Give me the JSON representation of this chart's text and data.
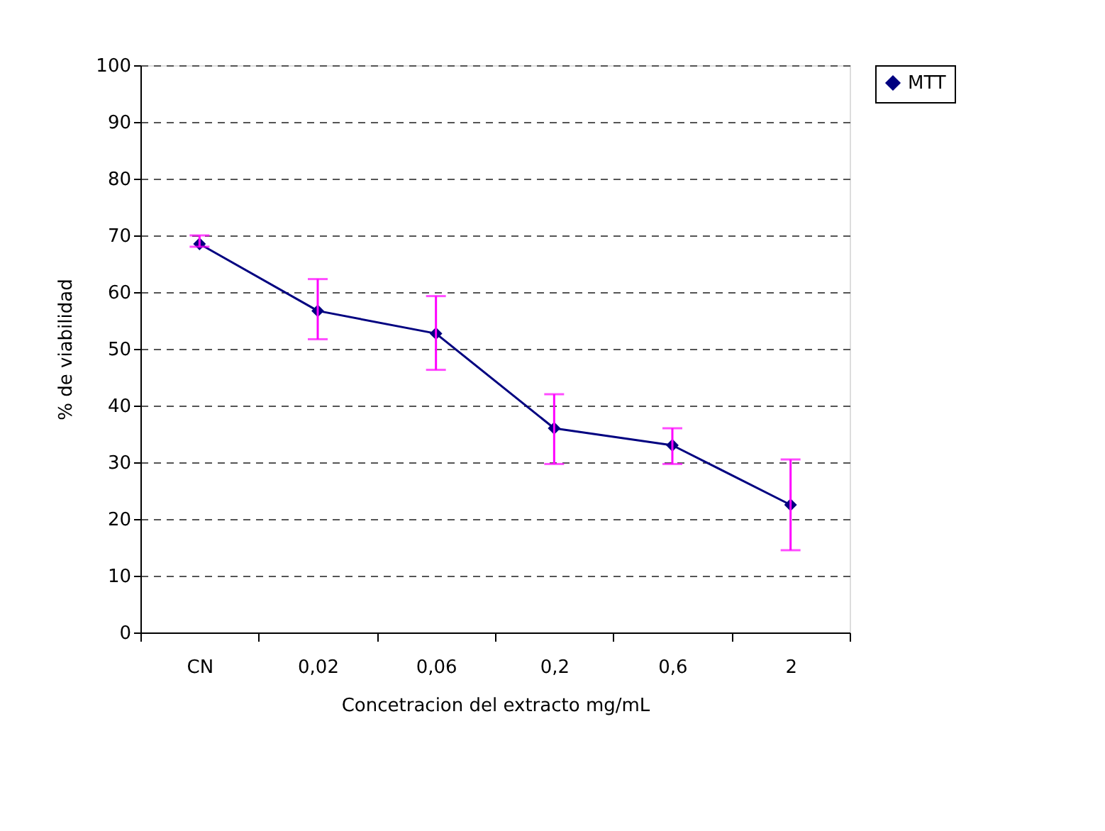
{
  "chart_data": {
    "type": "line",
    "xlabel": "Concetracion del extracto  mg/mL",
    "ylabel": "% de viabilidad",
    "categories": [
      "CN",
      "0,02",
      "0,06",
      "0,2",
      "0,6",
      "2"
    ],
    "series": [
      {
        "name": "MTT",
        "color": "#000080",
        "values": [
          68.5,
          56.7,
          52.7,
          36,
          33,
          22.5
        ],
        "errors": [
          [
            68,
            70
          ],
          [
            51.7,
            62.3
          ],
          [
            46.3,
            59.3
          ],
          [
            29.7,
            42
          ],
          [
            29.7,
            36
          ],
          [
            14.5,
            30.5
          ]
        ]
      }
    ],
    "ylim": [
      0,
      100
    ],
    "yticks": [
      0,
      10,
      20,
      30,
      40,
      50,
      60,
      70,
      80,
      90,
      100
    ],
    "grid": "y",
    "legend": "right",
    "marker": "diamond",
    "line_style": "solid"
  }
}
